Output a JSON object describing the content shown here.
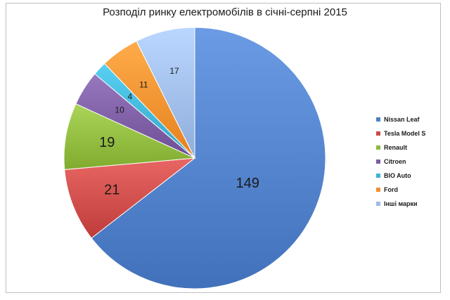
{
  "chart_data": {
    "type": "pie",
    "title": "Розподіл ринку електромобілів в січні-серпні 2015",
    "slices": [
      {
        "label": "Nissan Leaf",
        "value": 149,
        "color": "#4f7fc8"
      },
      {
        "label": "Tesla Model S",
        "value": 21,
        "color": "#cc4a47"
      },
      {
        "label": "Renault",
        "value": 19,
        "color": "#8eb93d"
      },
      {
        "label": "Citroen",
        "value": 10,
        "color": "#7b5ca3"
      },
      {
        "label": "BIO Auto",
        "value": 4,
        "color": "#3db3d6"
      },
      {
        "label": "Ford",
        "value": 11,
        "color": "#f28f2d"
      },
      {
        "label": "Інші марки",
        "value": 17,
        "color": "#9dbbe8"
      }
    ],
    "legend_position": "right"
  }
}
